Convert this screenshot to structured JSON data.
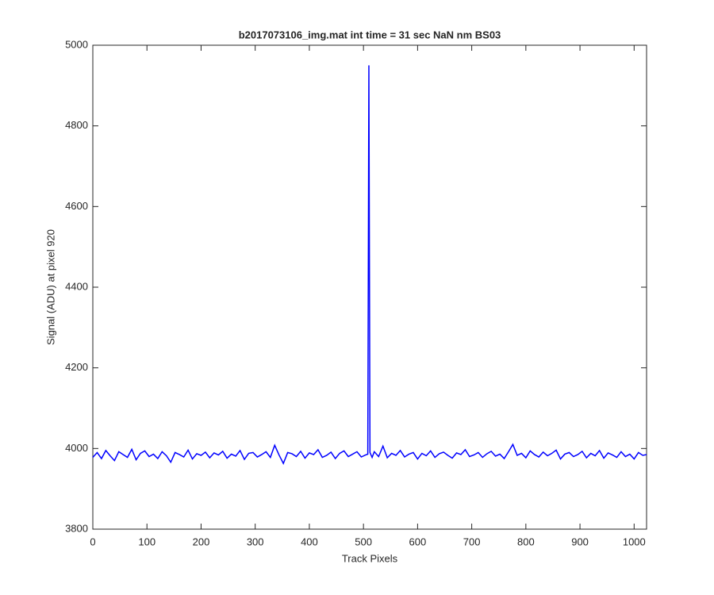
{
  "chart_data": {
    "type": "line",
    "title": "b2017073106_img.mat int time = 31 sec  NaN nm BS03",
    "xlabel": "Track Pixels",
    "ylabel": "Signal (ADU) at pixel 920",
    "color": "#0000ff",
    "xlim": [
      0,
      1023
    ],
    "ylim": [
      3800,
      5000
    ],
    "xticks": [
      0,
      100,
      200,
      300,
      400,
      500,
      600,
      700,
      800,
      900,
      1000
    ],
    "yticks": [
      3800,
      4000,
      4200,
      4400,
      4600,
      4800,
      5000
    ],
    "x": [
      0,
      8,
      16,
      24,
      32,
      40,
      48,
      56,
      64,
      72,
      80,
      88,
      96,
      104,
      112,
      120,
      128,
      136,
      144,
      152,
      160,
      168,
      176,
      184,
      192,
      200,
      208,
      216,
      224,
      232,
      240,
      248,
      256,
      264,
      272,
      280,
      288,
      296,
      304,
      312,
      320,
      328,
      336,
      344,
      352,
      360,
      368,
      376,
      384,
      392,
      400,
      408,
      416,
      424,
      432,
      440,
      448,
      456,
      464,
      472,
      480,
      488,
      496,
      504,
      508,
      510,
      512,
      516,
      520,
      528,
      536,
      544,
      552,
      560,
      568,
      576,
      584,
      592,
      600,
      608,
      616,
      624,
      632,
      640,
      648,
      656,
      664,
      672,
      680,
      688,
      696,
      704,
      712,
      720,
      728,
      736,
      744,
      752,
      760,
      768,
      776,
      784,
      792,
      800,
      808,
      816,
      824,
      832,
      840,
      848,
      856,
      864,
      872,
      880,
      888,
      896,
      904,
      912,
      920,
      928,
      936,
      944,
      952,
      960,
      968,
      976,
      984,
      992,
      1000,
      1008,
      1016,
      1023
    ],
    "values": [
      3978,
      3990,
      3975,
      3995,
      3982,
      3970,
      3992,
      3985,
      3978,
      3998,
      3972,
      3988,
      3994,
      3980,
      3986,
      3975,
      3992,
      3982,
      3966,
      3990,
      3985,
      3979,
      3996,
      3974,
      3987,
      3983,
      3991,
      3977,
      3989,
      3984,
      3993,
      3976,
      3986,
      3981,
      3995,
      3973,
      3988,
      3990,
      3979,
      3985,
      3992,
      3978,
      4008,
      3984,
      3963,
      3990,
      3987,
      3980,
      3993,
      3976,
      3989,
      3985,
      3997,
      3978,
      3983,
      3991,
      3975,
      3988,
      3994,
      3980,
      3986,
      3992,
      3979,
      3984,
      3986,
      4950,
      3990,
      3978,
      3992,
      3980,
      4006,
      3977,
      3988,
      3983,
      3995,
      3979,
      3986,
      3990,
      3974,
      3988,
      3982,
      3994,
      3978,
      3987,
      3991,
      3983,
      3976,
      3989,
      3985,
      3997,
      3980,
      3984,
      3990,
      3978,
      3987,
      3993,
      3981,
      3986,
      3975,
      3992,
      4010,
      3983,
      3988,
      3977,
      3994,
      3985,
      3979,
      3991,
      3982,
      3988,
      3996,
      3974,
      3986,
      3990,
      3980,
      3985,
      3993,
      3977,
      3988,
      3982,
      3995,
      3976,
      3989,
      3984,
      3978,
      3992,
      3980,
      3986,
      3974,
      3990,
      3983,
      3985
    ]
  }
}
